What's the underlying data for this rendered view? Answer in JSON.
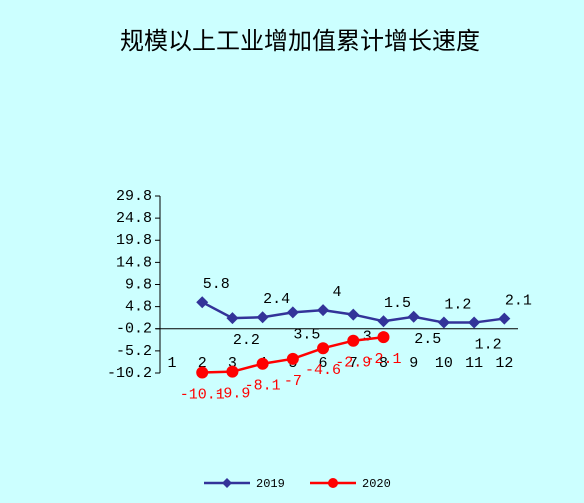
{
  "chart_data": {
    "type": "line",
    "title": "规模以上工业增加值累计增长速度",
    "categories": [
      "1",
      "2",
      "3",
      "4",
      "5",
      "6",
      "7",
      "8",
      "9",
      "10",
      "11",
      "12"
    ],
    "series": [
      {
        "name": "2019",
        "color": "#333399",
        "marker": "diamond",
        "values": [
          null,
          5.8,
          2.2,
          2.4,
          3.5,
          4,
          3,
          1.5,
          2.5,
          1.2,
          1.2,
          2.1
        ]
      },
      {
        "name": "2020",
        "color": "#ff0000",
        "marker": "circle",
        "values": [
          null,
          -10.1,
          -9.9,
          -8.1,
          -7,
          -4.6,
          -2.9,
          -2.1,
          null,
          null,
          null,
          null
        ]
      }
    ],
    "ylim": [
      -10.2,
      29.8
    ],
    "yticks": [
      -10.2,
      -5.2,
      -0.2,
      4.8,
      9.8,
      14.8,
      19.8,
      24.8,
      29.8
    ],
    "legend": "bottom"
  }
}
